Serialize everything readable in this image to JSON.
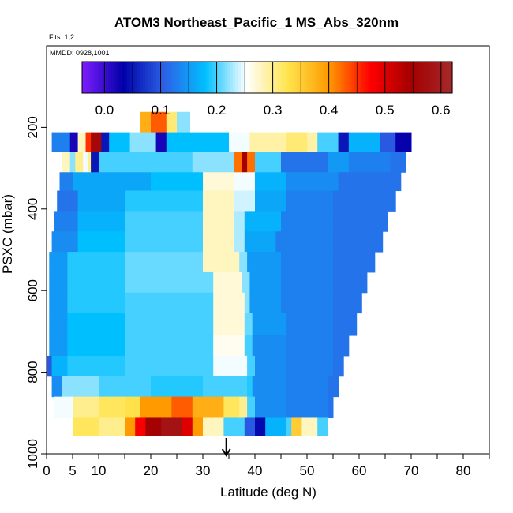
{
  "chart_data": {
    "type": "heatmap",
    "title": "ATOM3 Northeast_Pacific_1 MS_Abs_320nm",
    "subtitle_flights": "Flts: 1,2",
    "subtitle_dates": "MMDD: 0928,1001",
    "xlabel": "Latitude (deg N)",
    "ylabel": "PSXC (mbar)",
    "xlim": [
      0,
      85
    ],
    "ylim": [
      1000,
      0
    ],
    "x_ticks": [
      0,
      5,
      10,
      20,
      30,
      40,
      50,
      60,
      70,
      80
    ],
    "x_minor_ticks": [
      0,
      5,
      10,
      15,
      20,
      25,
      30,
      35,
      40,
      45,
      50,
      55,
      60,
      65,
      70,
      75,
      80,
      85
    ],
    "y_ticks": [
      200,
      400,
      600,
      800,
      1000
    ],
    "colorbar": {
      "ticks": [
        0.0,
        0.1,
        0.2,
        0.3,
        0.4,
        0.5,
        0.6
      ],
      "tick_labels": [
        "0.0",
        "0.1",
        "0.2",
        "0.3",
        "0.4",
        "0.5",
        "0.6"
      ],
      "range": [
        -0.04,
        0.62
      ],
      "colors": [
        "#7f1dff",
        "#0000a8",
        "#2c62e6",
        "#00bfff",
        "#ffffff",
        "#ffe44d",
        "#ff9a00",
        "#ff0000",
        "#a40000",
        "#a52a2a"
      ]
    },
    "arrow_latitude": 34.5,
    "grid": false,
    "legend": "colorbar-top",
    "bands": [
      {
        "p_top": 162,
        "p_bot": 212,
        "lat_min": 18,
        "lat_max": 27.5,
        "segments": [
          [
            18,
            0.38
          ],
          [
            20,
            0.43
          ],
          [
            23,
            0.31
          ],
          [
            25,
            0.22
          ]
        ]
      },
      {
        "p_top": 212,
        "p_bot": 260,
        "lat_min": 1,
        "lat_max": 70,
        "segments": [
          [
            1,
            0.13
          ],
          [
            4.5,
            0.02
          ],
          [
            6,
            0.28
          ],
          [
            7.5,
            0.45
          ],
          [
            8.5,
            0.56
          ],
          [
            10.5,
            0.05
          ],
          [
            12,
            0.18
          ],
          [
            16,
            0.22
          ],
          [
            21,
            0.02
          ],
          [
            23,
            0.18
          ],
          [
            35,
            0.25
          ],
          [
            39,
            0.29
          ],
          [
            46,
            0.31
          ],
          [
            50,
            0.29
          ],
          [
            52,
            0.2
          ],
          [
            56,
            0.05
          ],
          [
            58,
            0.17
          ],
          [
            64,
            0.1
          ],
          [
            67,
            0.03
          ]
        ]
      },
      {
        "p_top": 260,
        "p_bot": 310,
        "lat_min": 3,
        "lat_max": 69,
        "segments": [
          [
            3,
            0.28
          ],
          [
            4.5,
            0.22
          ],
          [
            5.5,
            0.3
          ],
          [
            7,
            0.25
          ],
          [
            8,
            0.3
          ],
          [
            8.5,
            0.05
          ],
          [
            10,
            0.2
          ],
          [
            28,
            0.22
          ],
          [
            36,
            0.42
          ],
          [
            37.5,
            0.55
          ],
          [
            38.5,
            0.42
          ],
          [
            40,
            0.2
          ],
          [
            45,
            0.12
          ],
          [
            54,
            0.15
          ],
          [
            58,
            0.13
          ],
          [
            66,
            0.12
          ]
        ]
      },
      {
        "p_top": 310,
        "p_bot": 355,
        "lat_min": 2.5,
        "lat_max": 68,
        "segments": [
          [
            2.5,
            0.13
          ],
          [
            5,
            0.16
          ],
          [
            20,
            0.18
          ],
          [
            30,
            0.27
          ],
          [
            36,
            0.25
          ],
          [
            40,
            0.17
          ],
          [
            46,
            0.14
          ],
          [
            56,
            0.12
          ]
        ]
      },
      {
        "p_top": 355,
        "p_bot": 405,
        "lat_min": 2,
        "lat_max": 67,
        "segments": [
          [
            2,
            0.12
          ],
          [
            6,
            0.16
          ],
          [
            15,
            0.19
          ],
          [
            30,
            0.28
          ],
          [
            36,
            0.24
          ],
          [
            40,
            0.16
          ],
          [
            46,
            0.13
          ],
          [
            55,
            0.12
          ]
        ]
      },
      {
        "p_top": 405,
        "p_bot": 455,
        "lat_min": 1.5,
        "lat_max": 65.5,
        "segments": [
          [
            1.5,
            0.13
          ],
          [
            6,
            0.17
          ],
          [
            15,
            0.2
          ],
          [
            30,
            0.28
          ],
          [
            36,
            0.23
          ],
          [
            38,
            0.17
          ],
          [
            45,
            0.13
          ],
          [
            55,
            0.12
          ]
        ]
      },
      {
        "p_top": 455,
        "p_bot": 505,
        "lat_min": 1,
        "lat_max": 64.5,
        "segments": [
          [
            1,
            0.14
          ],
          [
            6,
            0.18
          ],
          [
            15,
            0.2
          ],
          [
            30,
            0.28
          ],
          [
            36,
            0.23
          ],
          [
            38,
            0.16
          ],
          [
            44,
            0.13
          ],
          [
            55,
            0.12
          ]
        ]
      },
      {
        "p_top": 505,
        "p_bot": 555,
        "lat_min": 0.5,
        "lat_max": 63,
        "segments": [
          [
            0.5,
            0.15
          ],
          [
            4,
            0.19
          ],
          [
            15,
            0.21
          ],
          [
            30,
            0.28
          ],
          [
            37,
            0.22
          ],
          [
            38.5,
            0.15
          ],
          [
            45,
            0.13
          ],
          [
            55,
            0.12
          ]
        ]
      },
      {
        "p_top": 555,
        "p_bot": 605,
        "lat_min": 0.5,
        "lat_max": 61.5,
        "segments": [
          [
            0.5,
            0.15
          ],
          [
            4,
            0.19
          ],
          [
            15,
            0.21
          ],
          [
            32,
            0.27
          ],
          [
            37.5,
            0.22
          ],
          [
            39,
            0.15
          ],
          [
            45,
            0.13
          ],
          [
            55,
            0.12
          ]
        ]
      },
      {
        "p_top": 605,
        "p_bot": 655,
        "lat_min": 0.5,
        "lat_max": 60.5,
        "segments": [
          [
            0.5,
            0.15
          ],
          [
            4,
            0.19
          ],
          [
            15,
            0.2
          ],
          [
            32,
            0.27
          ],
          [
            38,
            0.22
          ],
          [
            39,
            0.15
          ],
          [
            45,
            0.13
          ],
          [
            55,
            0.12
          ]
        ]
      },
      {
        "p_top": 655,
        "p_bot": 710,
        "lat_min": 0.5,
        "lat_max": 59.5,
        "segments": [
          [
            0.5,
            0.15
          ],
          [
            4,
            0.18
          ],
          [
            15,
            0.2
          ],
          [
            32,
            0.27
          ],
          [
            38,
            0.21
          ],
          [
            39.5,
            0.15
          ],
          [
            46,
            0.13
          ],
          [
            55,
            0.12
          ]
        ]
      },
      {
        "p_top": 710,
        "p_bot": 760,
        "lat_min": 0.5,
        "lat_max": 58,
        "segments": [
          [
            0.5,
            0.15
          ],
          [
            4,
            0.18
          ],
          [
            15,
            0.2
          ],
          [
            32,
            0.26
          ],
          [
            38,
            0.2
          ],
          [
            39.5,
            0.14
          ],
          [
            46,
            0.13
          ],
          [
            55,
            0.12
          ]
        ]
      },
      {
        "p_top": 760,
        "p_bot": 810,
        "lat_min": 0,
        "lat_max": 57,
        "segments": [
          [
            0,
            0.1
          ],
          [
            1,
            0.17
          ],
          [
            4,
            0.19
          ],
          [
            15,
            0.2
          ],
          [
            32,
            0.25
          ],
          [
            38.5,
            0.2
          ],
          [
            40,
            0.14
          ],
          [
            46,
            0.13
          ],
          [
            55,
            0.12
          ]
        ]
      },
      {
        "p_top": 810,
        "p_bot": 860,
        "lat_min": 1,
        "lat_max": 56,
        "segments": [
          [
            1,
            0.14
          ],
          [
            3,
            0.22
          ],
          [
            10,
            0.2
          ],
          [
            20,
            0.19
          ],
          [
            30,
            0.2
          ],
          [
            38.5,
            0.19
          ],
          [
            39.5,
            0.14
          ],
          [
            46,
            0.13
          ],
          [
            54,
            0.12
          ]
        ]
      },
      {
        "p_top": 860,
        "p_bot": 910,
        "lat_min": 1.5,
        "lat_max": 55,
        "segments": [
          [
            1.5,
            0.25
          ],
          [
            5,
            0.3
          ],
          [
            10,
            0.32
          ],
          [
            15,
            0.33
          ],
          [
            18,
            0.4
          ],
          [
            24,
            0.43
          ],
          [
            28,
            0.38
          ],
          [
            34,
            0.32
          ],
          [
            37,
            0.3
          ],
          [
            38.5,
            0.2
          ],
          [
            40,
            0.14
          ],
          [
            46,
            0.13
          ],
          [
            54,
            0.12
          ]
        ]
      },
      {
        "p_top": 910,
        "p_bot": 955,
        "lat_min": 5,
        "lat_max": 54,
        "segments": [
          [
            5,
            0.32
          ],
          [
            10,
            0.3
          ],
          [
            15,
            0.4
          ],
          [
            17,
            0.48
          ],
          [
            19,
            0.55
          ],
          [
            22,
            0.58
          ],
          [
            26,
            0.5
          ],
          [
            28,
            0.4
          ],
          [
            30,
            0.28
          ],
          [
            34,
            0.2
          ],
          [
            38,
            0.1
          ],
          [
            40,
            0.04
          ],
          [
            42,
            0.17
          ],
          [
            46,
            0.2
          ],
          [
            47,
            0.35
          ],
          [
            49,
            0.28
          ],
          [
            52,
            0.2
          ]
        ]
      }
    ]
  }
}
